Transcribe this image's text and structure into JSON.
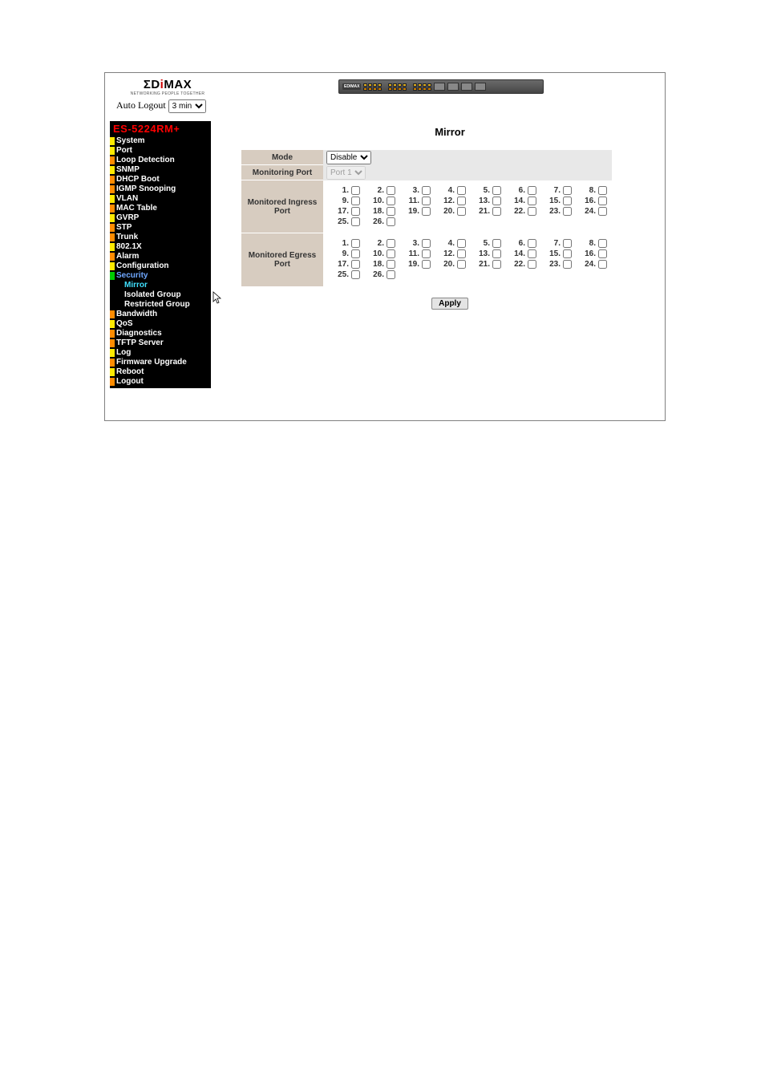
{
  "brand": {
    "name_pre": "ΣD",
    "name_dot": "i",
    "name_post": "MAX",
    "sub": "NETWORKING PEOPLE TOGETHER"
  },
  "autologout": {
    "label": "Auto Logout",
    "options": [
      "3 min"
    ],
    "selected": "3 min"
  },
  "model": "ES-5224RM+",
  "nav": [
    {
      "label": "System",
      "marker": "m-yellow"
    },
    {
      "label": "Port",
      "marker": "m-yellow"
    },
    {
      "label": "Loop Detection",
      "marker": "m-orange"
    },
    {
      "label": "SNMP",
      "marker": "m-yellow"
    },
    {
      "label": "DHCP Boot",
      "marker": "m-orange"
    },
    {
      "label": "IGMP Snooping",
      "marker": "m-orange"
    },
    {
      "label": "VLAN",
      "marker": "m-yellow"
    },
    {
      "label": "MAC Table",
      "marker": "m-orange"
    },
    {
      "label": "GVRP",
      "marker": "m-yellow"
    },
    {
      "label": "STP",
      "marker": "m-orange"
    },
    {
      "label": "Trunk",
      "marker": "m-orange"
    },
    {
      "label": "802.1X",
      "marker": "m-yellow"
    },
    {
      "label": "Alarm",
      "marker": "m-orange"
    },
    {
      "label": "Configuration",
      "marker": "m-yellow"
    },
    {
      "label": "Security",
      "marker": "m-green",
      "cls": "lbl-blue"
    },
    {
      "label": "Mirror",
      "marker": "m-none",
      "cls": "lbl-aqua",
      "sub": true
    },
    {
      "label": "Isolated Group",
      "marker": "m-none",
      "sub": true
    },
    {
      "label": "Restricted Group",
      "marker": "m-none",
      "sub": true
    },
    {
      "label": "Bandwidth",
      "marker": "m-orange"
    },
    {
      "label": "QoS",
      "marker": "m-yellow"
    },
    {
      "label": "Diagnostics",
      "marker": "m-orange"
    },
    {
      "label": "TFTP Server",
      "marker": "m-orange"
    },
    {
      "label": "Log",
      "marker": "m-yellow"
    },
    {
      "label": "Firmware Upgrade",
      "marker": "m-orange"
    },
    {
      "label": "Reboot",
      "marker": "m-yellow"
    },
    {
      "label": "Logout",
      "marker": "m-orange"
    }
  ],
  "mirror": {
    "title": "Mirror",
    "mode_label": "Mode",
    "mode_options": [
      "Disable"
    ],
    "mode_selected": "Disable",
    "monitoring_label": "Monitoring Port",
    "monitoring_options": [
      "Port 1"
    ],
    "monitoring_selected": "Port 1",
    "ingress_label": "Monitored Ingress Port",
    "egress_label": "Monitored Egress Port",
    "port_count": 26,
    "apply_label": "Apply"
  }
}
